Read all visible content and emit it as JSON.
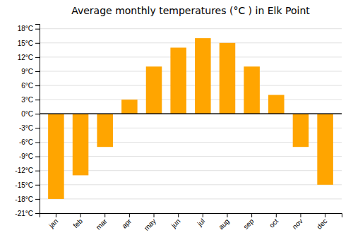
{
  "chart_data": {
    "type": "bar",
    "title": "Average monthly temperatures (°C ) in Elk Point",
    "categories": [
      "jan",
      "feb",
      "mar",
      "apr",
      "may",
      "jun",
      "jul",
      "aug",
      "sep",
      "oct",
      "nov",
      "dec"
    ],
    "values": [
      -18,
      -13,
      -7,
      3,
      10,
      14,
      16,
      15,
      10,
      4,
      -7,
      -15
    ],
    "color": "#FFA500",
    "ylim": [
      -21,
      19
    ],
    "yticks": [
      {
        "value": -21,
        "label": "-21°C"
      },
      {
        "value": -18,
        "label": "-18°C"
      },
      {
        "value": -15,
        "label": "-15°C"
      },
      {
        "value": -12,
        "label": "-12°C"
      },
      {
        "value": -9,
        "label": "-9°C"
      },
      {
        "value": -6,
        "label": "-6°C"
      },
      {
        "value": -3,
        "label": "-3°C"
      },
      {
        "value": 0,
        "label": "0°C"
      },
      {
        "value": 3,
        "label": "3°C"
      },
      {
        "value": 6,
        "label": "6°C"
      },
      {
        "value": 9,
        "label": "9°C"
      },
      {
        "value": 12,
        "label": "12°C"
      },
      {
        "value": 15,
        "label": "15°C"
      },
      {
        "value": 18,
        "label": "18°C"
      }
    ],
    "grid": true
  }
}
